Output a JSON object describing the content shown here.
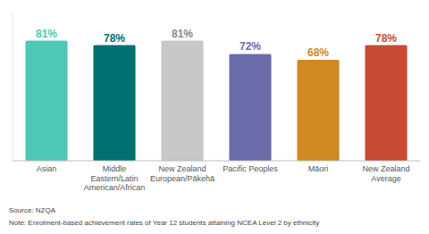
{
  "chart_data": {
    "type": "bar",
    "categories": [
      "Asian",
      "Middle\nEastern/Latin\nAmerican/African",
      "New Zealand\nEuropean/Pākehā",
      "Pacific Peoples",
      "Māori",
      "New Zealand\nAverage"
    ],
    "values": [
      81,
      78,
      81,
      72,
      68,
      78
    ],
    "value_labels": [
      "81%",
      "78%",
      "81%",
      "72%",
      "68%",
      "78%"
    ],
    "colors": [
      "#4DC8B4",
      "#007070",
      "#C8C8C8",
      "#6B6BAA",
      "#D08820",
      "#C84B35"
    ],
    "ylim": [
      0,
      100
    ],
    "data_labels": true,
    "tick_labels": "x",
    "annotations": [
      "Source: NZQA",
      "Note: Enrolment-based achievement rates of Year 12 students attaining NCEA Level 2 by ethnicity"
    ]
  }
}
